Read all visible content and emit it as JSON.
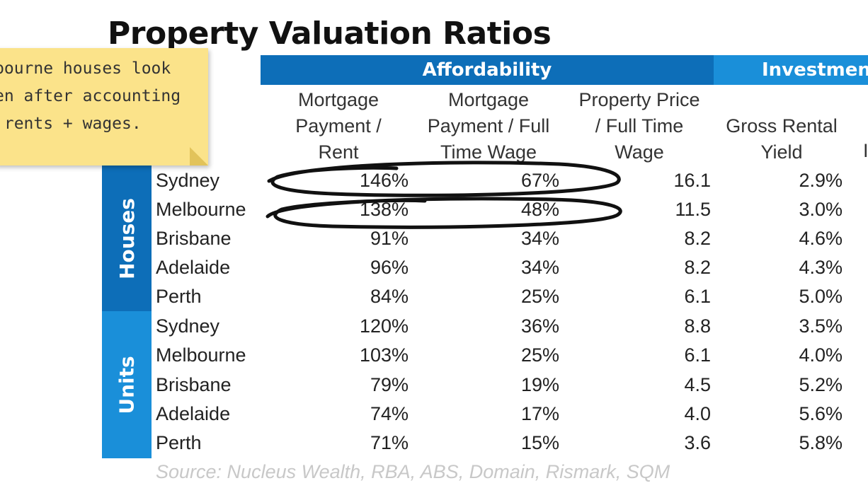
{
  "title": "Property Valuation Ratios",
  "bands": {
    "affordability": "Affordability",
    "investment": "Investment"
  },
  "columns": [
    "Mortgage\nPayment /\nRent",
    "Mortgage\nPayment / Full\nTime Wage",
    "Property Price\n/ Full Time\nWage",
    "Gross Rental\nYield"
  ],
  "edge_letter": "I",
  "groups": {
    "houses": "Houses",
    "units": "Units"
  },
  "rows": [
    {
      "city": "Sydney",
      "v": [
        "146%",
        "67%",
        "16.1",
        "2.9%"
      ]
    },
    {
      "city": "Melbourne",
      "v": [
        "138%",
        "48%",
        "11.5",
        "3.0%"
      ]
    },
    {
      "city": "Brisbane",
      "v": [
        "91%",
        "34%",
        "8.2",
        "4.6%"
      ]
    },
    {
      "city": "Adelaide",
      "v": [
        "96%",
        "34%",
        "8.2",
        "4.3%"
      ]
    },
    {
      "city": "Perth",
      "v": [
        "84%",
        "25%",
        "6.1",
        "5.0%"
      ]
    },
    {
      "city": "Sydney",
      "v": [
        "120%",
        "36%",
        "8.8",
        "3.5%"
      ]
    },
    {
      "city": "Melbourne",
      "v": [
        "103%",
        "25%",
        "6.1",
        "4.0%"
      ]
    },
    {
      "city": "Brisbane",
      "v": [
        "79%",
        "19%",
        "4.5",
        "5.2%"
      ]
    },
    {
      "city": "Adelaide",
      "v": [
        "74%",
        "17%",
        "4.0",
        "5.6%"
      ]
    },
    {
      "city": "Perth",
      "v": [
        "71%",
        "15%",
        "3.6",
        "5.8%"
      ]
    }
  ],
  "source": "Source: Nucleus Wealth, RBA, ABS, Domain, Rismark, SQM",
  "note": {
    "lines": [
      "bourne houses look",
      "en after accounting",
      " rents + wages."
    ]
  },
  "colors": {
    "affordability_band": "#0d6eb8",
    "investment_band": "#1a8fd9",
    "note_bg": "#fbe38a",
    "source_text": "#c8c8c8"
  }
}
